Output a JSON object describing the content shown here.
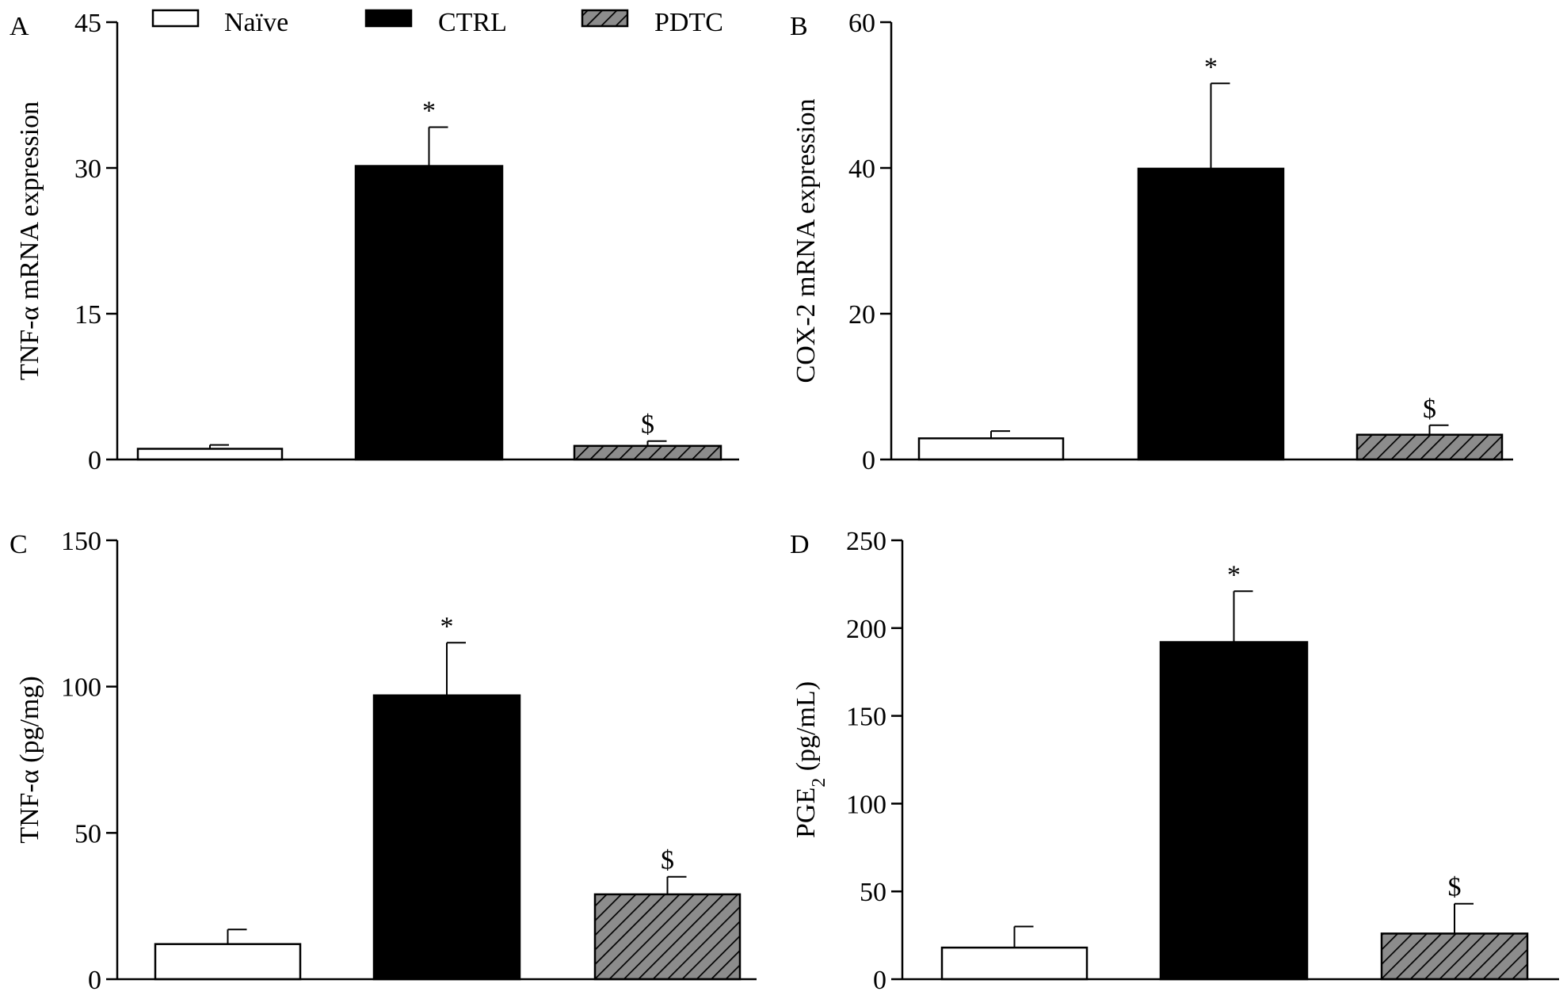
{
  "legend": {
    "entries": [
      {
        "label": "Naïve",
        "fill": "#ffffff"
      },
      {
        "label": "CTRL",
        "fill": "#000000"
      },
      {
        "label": "PDTC",
        "fill": "hatch"
      }
    ]
  },
  "colors": {
    "naive": "#ffffff",
    "ctrl": "#000000",
    "pdtc": "#8c8c8c",
    "axis": "#000000"
  },
  "chart_data": [
    {
      "type": "bar",
      "panel": "A",
      "title": "",
      "xlabel": "",
      "ylabel": "TNF-α mRNA expression",
      "categories": [
        "Naïve",
        "CTRL",
        "PDTC"
      ],
      "values": [
        1.1,
        30.2,
        1.4
      ],
      "errors": [
        0.4,
        4.0,
        0.5
      ],
      "significance": [
        "",
        "*",
        "$"
      ],
      "ylim": [
        0,
        45
      ],
      "yticks": [
        0,
        15,
        30,
        45
      ],
      "ytick_labels": [
        "0",
        "15",
        "30",
        "45"
      ]
    },
    {
      "type": "bar",
      "panel": "B",
      "title": "",
      "xlabel": "",
      "ylabel": "COX-2 mRNA expression",
      "categories": [
        "Naïve",
        "CTRL",
        "PDTC"
      ],
      "values": [
        2.9,
        39.9,
        3.4
      ],
      "errors": [
        1.0,
        11.7,
        1.3
      ],
      "significance": [
        "",
        "*",
        "$"
      ],
      "ylim": [
        0,
        60
      ],
      "yticks": [
        0,
        20,
        40,
        60
      ],
      "ytick_labels": [
        "0",
        "20",
        "40",
        "60"
      ]
    },
    {
      "type": "bar",
      "panel": "C",
      "title": "",
      "xlabel": "",
      "ylabel": "TNF-α (pg/mg)",
      "categories": [
        "Naïve",
        "CTRL",
        "PDTC"
      ],
      "values": [
        12,
        97,
        29
      ],
      "errors": [
        5,
        18,
        6
      ],
      "significance": [
        "",
        "*",
        "$"
      ],
      "ylim": [
        0,
        150
      ],
      "yticks": [
        0,
        50,
        100,
        150
      ],
      "ytick_labels": [
        "0",
        "50",
        "100",
        "150"
      ]
    },
    {
      "type": "bar",
      "panel": "D",
      "title": "",
      "xlabel": "",
      "ylabel": "PGE",
      "ylabel_subscript": "2",
      "ylabel_suffix": " (pg/mL)",
      "categories": [
        "Naïve",
        "CTRL",
        "PDTC"
      ],
      "values": [
        18,
        192,
        26
      ],
      "errors": [
        12,
        29,
        17
      ],
      "significance": [
        "",
        "*",
        "$"
      ],
      "ylim": [
        0,
        250
      ],
      "yticks": [
        0,
        50,
        100,
        150,
        200,
        250
      ],
      "ytick_labels": [
        "0",
        "50",
        "100",
        "150",
        "200",
        "250"
      ]
    }
  ]
}
